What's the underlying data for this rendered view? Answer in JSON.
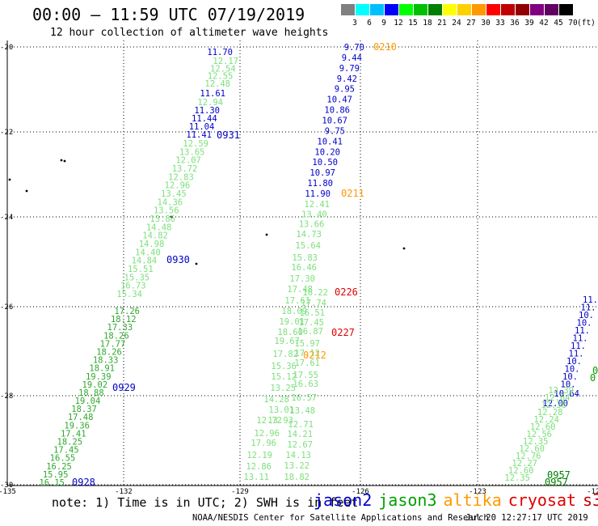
{
  "title": "00:00 – 11:59 UTC 07/19/2019",
  "subtitle": "12 hour collection of altimeter wave heights",
  "legend": {
    "unit": "(ft)",
    "bins": [
      {
        "label": "3",
        "color": "#808080"
      },
      {
        "label": "6",
        "color": "#00ffff"
      },
      {
        "label": "9",
        "color": "#00bfff"
      },
      {
        "label": "12",
        "color": "#0000ff"
      },
      {
        "label": "15",
        "color": "#00ff00"
      },
      {
        "label": "18",
        "color": "#00c000"
      },
      {
        "label": "21",
        "color": "#008000"
      },
      {
        "label": "24",
        "color": "#ffff00"
      },
      {
        "label": "27",
        "color": "#ffd000"
      },
      {
        "label": "30",
        "color": "#ff9900"
      },
      {
        "label": "33",
        "color": "#ff0000"
      },
      {
        "label": "36",
        "color": "#c00000"
      },
      {
        "label": "39",
        "color": "#900000"
      },
      {
        "label": "42",
        "color": "#800080"
      },
      {
        "label": "45",
        "color": "#600060"
      },
      {
        "label": "70",
        "color": "#000000"
      }
    ]
  },
  "axes": {
    "lat_ticks": [
      "-20",
      "-22",
      "-24",
      "-26",
      "-28",
      "-30"
    ],
    "lon_ticks": [
      "-135",
      "-132",
      "-129",
      "-126",
      "-123",
      "-120"
    ]
  },
  "notes": "note: 1) Time is in UTC; 2) SWH is in feet",
  "satellites": [
    {
      "name": "jason2",
      "color": "#0000c8"
    },
    {
      "name": "jason3",
      "color": "#00a000"
    },
    {
      "name": "altika",
      "color": "#ff9900"
    },
    {
      "name": "cryosat",
      "color": "#e00000"
    },
    {
      "name": "s3a",
      "color": "#c00000"
    }
  ],
  "credit": "NOAA/NESDIS Center for Satellite Applications and Research",
  "timestamp": "Jul 20 12:27:17 UTC 2019",
  "track_a": {
    "blue_top": [
      "11.70"
    ],
    "light": [
      "12.17",
      "12.54",
      "12.55",
      "12.48"
    ],
    "blue2": [
      "11.61"
    ],
    "light2": [
      "12.94"
    ],
    "blue3": [
      "11.30",
      "11.44",
      "11.04",
      "11.41"
    ],
    "light3": [
      "12.59",
      "13.65",
      "12.07",
      "13.72",
      "12.83",
      "12.96",
      "13.45",
      "14.36",
      "13.56",
      "13.86",
      "14.48",
      "14.82",
      "14.98",
      "14.40",
      "14.84",
      "15.51",
      "15.35",
      "16.73",
      "15.34"
    ],
    "green": [
      "17.26",
      "18.12",
      "17.33",
      "18.26",
      "17.77",
      "18.26",
      "18.33",
      "18.91",
      "19.39",
      "19.02",
      "18.88",
      "19.04",
      "18.37",
      "17.48",
      "19.36",
      "17.41",
      "18.25",
      "17.45",
      "16.55",
      "16.25",
      "15.95",
      "16.15"
    ],
    "times": [
      {
        "t": "0931",
        "c": "#0000c8"
      },
      {
        "t": "0930",
        "c": "#0000c8"
      },
      {
        "t": "0929",
        "c": "#0000c8"
      },
      {
        "t": "0928",
        "c": "#0000c8"
      }
    ]
  },
  "track_b": {
    "blue": [
      "9.70",
      "9.44",
      "9.79",
      "9.42",
      "9.95",
      "10.47",
      "10.86",
      "10.67",
      "9.75",
      "10.41",
      "10.20",
      "10.50",
      "10.97",
      "11.80",
      "11.90"
    ],
    "light": [
      "12.41",
      "13.40",
      "13.66",
      "14.73"
    ],
    "green": [
      "15.64",
      "15.83",
      "16.46",
      "17.30",
      "17.48",
      "16.22",
      "17.61",
      "17.74",
      "18.09",
      "16.51",
      "19.01",
      "17.45",
      "18.60",
      "16.87",
      "19.67",
      "15.97",
      "17.82",
      "17.12",
      "15.36",
      "17.61",
      "15.12",
      "17.55",
      "13.25",
      "16.63",
      "14.28",
      "16.57",
      "13.01",
      "13.93",
      "13.48",
      "12.72",
      "12.71",
      "12.96",
      "14.21",
      "17.96",
      "12.67",
      "12.19",
      "14.13",
      "12.86",
      "13.22",
      "13.11",
      "18.82"
    ],
    "times": [
      {
        "t": "0210",
        "c": "#ff9900"
      },
      {
        "t": "0211",
        "c": "#ff9900"
      },
      {
        "t": "0226",
        "c": "#e00000"
      },
      {
        "t": "0227",
        "c": "#e00000"
      },
      {
        "t": "0212",
        "c": "#ff9900"
      }
    ]
  },
  "track_c": {
    "values": [
      "11.",
      "11.",
      "10.",
      "10.",
      "11.",
      "11.",
      "11.",
      "11.",
      "10.",
      "10.",
      "10.",
      "10.",
      "10.64",
      "12.00",
      "12.39",
      "12.64",
      "12.38",
      "12.28",
      "12.24",
      "12.60",
      "12.56",
      "12.35",
      "12.60",
      "12.76",
      "12.27",
      "12.60",
      "12.35"
    ],
    "times": [
      {
        "t": "0",
        "c": "#00a000"
      },
      {
        "t": "0",
        "c": "#00a000"
      },
      {
        "t": "0957",
        "c": "#008000"
      },
      {
        "t": "0957",
        "c": "#008000"
      }
    ]
  }
}
